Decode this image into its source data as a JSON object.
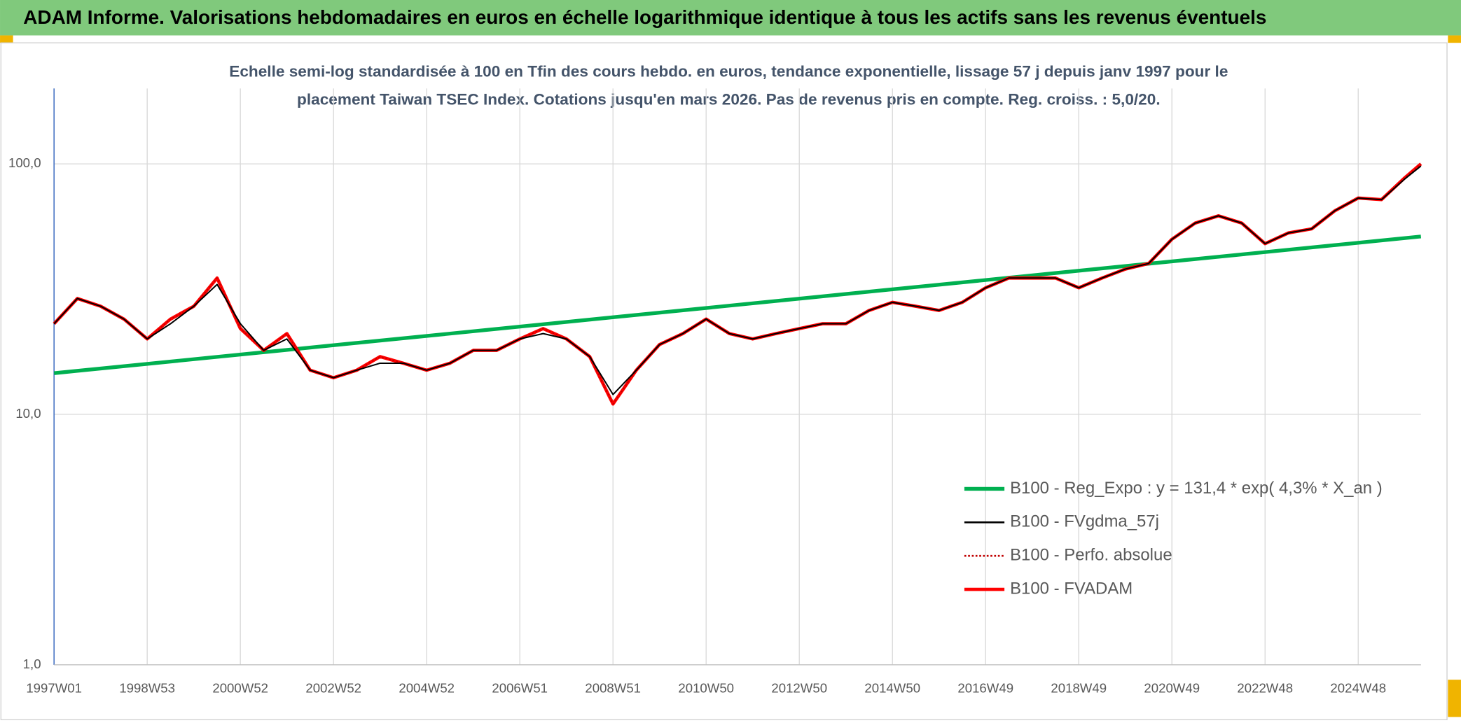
{
  "chart_data": {
    "type": "line",
    "title": "ADAM Informe. Valorisations hebdomadaires en euros en échelle logarithmique identique à tous les actifs sans les revenus éventuels",
    "subtitle": [
      "Echelle semi-log standardisée à 100 en Tfin des cours hebdo. en euros, tendance exponentielle, lissage 57 j depuis janv 1997 pour le",
      "placement Taiwan TSEC Index. Cotations jusqu'en mars 2026. Pas de revenus pris en compte. Reg. croiss. : 5,0/20."
    ],
    "log_scale": true,
    "grid": true,
    "legend": "lower right",
    "xlim": [
      0,
      1526
    ],
    "xticks": [
      {
        "value": 0,
        "label": "1997W01"
      },
      {
        "value": 104,
        "label": "1998W53"
      },
      {
        "value": 208,
        "label": "2000W52"
      },
      {
        "value": 312,
        "label": "2002W52"
      },
      {
        "value": 416,
        "label": "2004W52"
      },
      {
        "value": 520,
        "label": "2006W51"
      },
      {
        "value": 624,
        "label": "2008W51"
      },
      {
        "value": 728,
        "label": "2010W50"
      },
      {
        "value": 832,
        "label": "2012W50"
      },
      {
        "value": 936,
        "label": "2014W50"
      },
      {
        "value": 1040,
        "label": "2016W49"
      },
      {
        "value": 1144,
        "label": "2018W49"
      },
      {
        "value": 1248,
        "label": "2020W49"
      },
      {
        "value": 1352,
        "label": "2022W48"
      },
      {
        "value": 1456,
        "label": "2024W48"
      }
    ],
    "ylim": [
      1,
      200
    ],
    "yticks": [
      {
        "value": 1,
        "label": "1,0"
      },
      {
        "value": 10,
        "label": "10,0"
      },
      {
        "value": 100,
        "label": "100,0"
      }
    ],
    "x": [
      0,
      26,
      52,
      78,
      104,
      130,
      156,
      182,
      208,
      234,
      260,
      286,
      312,
      338,
      364,
      390,
      416,
      442,
      468,
      494,
      520,
      546,
      572,
      598,
      624,
      650,
      676,
      702,
      728,
      754,
      780,
      806,
      832,
      858,
      884,
      910,
      936,
      962,
      988,
      1014,
      1040,
      1066,
      1092,
      1118,
      1144,
      1170,
      1196,
      1222,
      1248,
      1274,
      1300,
      1326,
      1352,
      1378,
      1404,
      1430,
      1456,
      1482,
      1508,
      1526
    ],
    "series": [
      {
        "name": "B100 - Reg_Expo : y = 131,4 * exp( 4,3% *  X_an )",
        "color": "#00b050",
        "width": 4,
        "style": "solid",
        "x": [
          0,
          1526
        ],
        "values": [
          14.6,
          51.3
        ]
      },
      {
        "name": "B100 - FVgdma_57j",
        "color": "#000000",
        "width": 1.5,
        "style": "solid",
        "values": [
          23,
          29,
          27,
          24,
          20,
          23,
          27,
          33,
          23,
          18,
          20,
          15,
          14,
          15,
          16,
          16,
          15,
          16,
          18,
          18,
          20,
          21,
          20,
          17,
          12,
          15,
          19,
          21,
          24,
          21,
          20,
          21,
          22,
          23,
          23,
          26,
          28,
          27,
          26,
          28,
          32,
          35,
          35,
          35,
          32,
          35,
          38,
          40,
          50,
          58,
          62,
          58,
          48,
          53,
          55,
          65,
          73,
          72,
          87,
          98
        ]
      },
      {
        "name": "B100 - Perfo. absolue",
        "color": "#c00000",
        "width": 1.2,
        "style": "dotted",
        "values": [
          23,
          29,
          27,
          24,
          20,
          24,
          27,
          35,
          22,
          18,
          21,
          15,
          14,
          15,
          17,
          16,
          15,
          16,
          18,
          18,
          20,
          22,
          20,
          17,
          11,
          15,
          19,
          21,
          24,
          21,
          20,
          21,
          22,
          23,
          23,
          26,
          28,
          27,
          26,
          28,
          32,
          35,
          35,
          35,
          32,
          35,
          38,
          40,
          50,
          58,
          62,
          58,
          48,
          53,
          55,
          65,
          73,
          72,
          88,
          100
        ]
      },
      {
        "name": "B100 - FVADAM",
        "color": "#ff0000",
        "width": 3.5,
        "style": "solid",
        "values": [
          23,
          29,
          27,
          24,
          20,
          24,
          27,
          35,
          22,
          18,
          21,
          15,
          14,
          15,
          17,
          16,
          15,
          16,
          18,
          18,
          20,
          22,
          20,
          17,
          11,
          15,
          19,
          21,
          24,
          21,
          20,
          21,
          22,
          23,
          23,
          26,
          28,
          27,
          26,
          28,
          32,
          35,
          35,
          35,
          32,
          35,
          38,
          40,
          50,
          58,
          62,
          58,
          48,
          53,
          55,
          65,
          73,
          72,
          88,
          100
        ]
      }
    ]
  }
}
